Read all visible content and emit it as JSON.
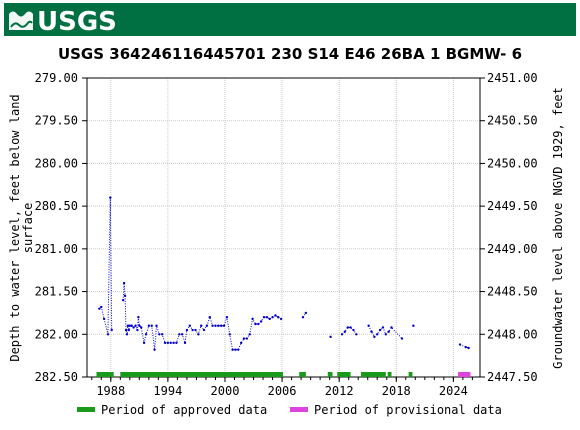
{
  "header": {
    "logo_text": "USGS",
    "background_color": "#006f41"
  },
  "chart_data": {
    "type": "scatter",
    "title": "USGS 364246116445701 230  S14 E46 26BA  1    BGMW- 6",
    "ylabel_left": "Depth to water level, feet below land surface",
    "ylabel_left_lines": [
      "Depth to water level, feet below land",
      "surface"
    ],
    "ylabel_right": "Groundwater level above NGVD 1929, feet",
    "x_axis": {
      "type": "year",
      "range": [
        1985.5,
        2026.8
      ],
      "ticks": [
        1988,
        1994,
        2000,
        2006,
        2012,
        2018,
        2024
      ],
      "tick_labels": [
        "1988",
        "1994",
        "2000",
        "2006",
        "2012",
        "2018",
        "2024"
      ]
    },
    "y_left": {
      "range": [
        279.0,
        282.5
      ],
      "inverted": true,
      "ticks": [
        279.0,
        279.5,
        280.0,
        280.5,
        281.0,
        281.5,
        282.0,
        282.5
      ],
      "tick_labels": [
        "279.00",
        "279.50",
        "280.00",
        "280.50",
        "281.00",
        "281.50",
        "282.00",
        "282.50"
      ]
    },
    "y_right": {
      "ticks": [
        2451.0,
        2450.5,
        2450.0,
        2449.5,
        2449.0,
        2448.5,
        2448.0,
        2447.5
      ],
      "tick_labels": [
        "2451.00",
        "2450.50",
        "2450.00",
        "2449.50",
        "2449.00",
        "2448.50",
        "2448.00",
        "2447.50"
      ]
    },
    "grid": true,
    "series": [
      {
        "name": "Groundwater level",
        "color": "#0000cc",
        "line_style": "dotted",
        "points": [
          [
            1986.8,
            281.7
          ],
          [
            1987.0,
            281.68
          ],
          [
            1987.3,
            281.82
          ],
          [
            1987.7,
            282.0
          ],
          [
            1987.95,
            280.4
          ],
          [
            1988.1,
            281.95
          ],
          [
            1989.3,
            281.6
          ],
          [
            1989.4,
            281.4
          ],
          [
            1989.5,
            281.55
          ],
          [
            1989.6,
            281.95
          ],
          [
            1989.7,
            282.0
          ],
          [
            1989.8,
            281.9
          ],
          [
            1989.9,
            281.95
          ],
          [
            1990.0,
            281.9
          ],
          [
            1990.2,
            281.9
          ],
          [
            1990.4,
            281.92
          ],
          [
            1990.6,
            281.9
          ],
          [
            1990.8,
            281.95
          ],
          [
            1990.9,
            281.8
          ],
          [
            1991.0,
            281.9
          ],
          [
            1991.2,
            281.92
          ],
          [
            1991.5,
            282.1
          ],
          [
            1991.7,
            282.0
          ],
          [
            1992.0,
            281.9
          ],
          [
            1992.3,
            281.9
          ],
          [
            1992.6,
            282.18
          ],
          [
            1992.8,
            281.9
          ],
          [
            1993.1,
            282.0
          ],
          [
            1993.4,
            282.0
          ],
          [
            1993.7,
            282.1
          ],
          [
            1994.0,
            282.1
          ],
          [
            1994.3,
            282.1
          ],
          [
            1994.6,
            282.1
          ],
          [
            1994.9,
            282.1
          ],
          [
            1995.2,
            282.0
          ],
          [
            1995.5,
            282.0
          ],
          [
            1995.8,
            282.1
          ],
          [
            1996.0,
            281.95
          ],
          [
            1996.3,
            281.9
          ],
          [
            1996.6,
            281.95
          ],
          [
            1996.9,
            281.95
          ],
          [
            1997.2,
            282.0
          ],
          [
            1997.5,
            281.9
          ],
          [
            1997.8,
            281.95
          ],
          [
            1998.1,
            281.9
          ],
          [
            1998.4,
            281.8
          ],
          [
            1998.7,
            281.9
          ],
          [
            1999.0,
            281.9
          ],
          [
            1999.3,
            281.9
          ],
          [
            1999.6,
            281.9
          ],
          [
            1999.9,
            281.9
          ],
          [
            2000.2,
            281.8
          ],
          [
            2000.5,
            282.0
          ],
          [
            2000.8,
            282.18
          ],
          [
            2001.1,
            282.18
          ],
          [
            2001.4,
            282.18
          ],
          [
            2001.7,
            282.1
          ],
          [
            2002.0,
            282.05
          ],
          [
            2002.3,
            282.05
          ],
          [
            2002.6,
            282.0
          ],
          [
            2002.9,
            281.82
          ],
          [
            2003.2,
            281.88
          ],
          [
            2003.5,
            281.88
          ],
          [
            2003.8,
            281.85
          ],
          [
            2004.1,
            281.8
          ],
          [
            2004.4,
            281.8
          ],
          [
            2004.7,
            281.82
          ],
          [
            2005.0,
            281.8
          ],
          [
            2005.3,
            281.78
          ],
          [
            2005.6,
            281.8
          ],
          [
            2005.9,
            281.82
          ],
          [
            2008.2,
            281.8
          ],
          [
            2008.5,
            281.75
          ],
          [
            2011.1,
            282.03
          ],
          [
            2012.3,
            282.0
          ],
          [
            2012.6,
            281.97
          ],
          [
            2012.9,
            281.92
          ],
          [
            2013.2,
            281.92
          ],
          [
            2013.5,
            281.95
          ],
          [
            2013.8,
            282.0
          ],
          [
            2015.1,
            281.9
          ],
          [
            2015.4,
            281.97
          ],
          [
            2015.7,
            282.03
          ],
          [
            2016.0,
            282.0
          ],
          [
            2016.3,
            281.95
          ],
          [
            2016.6,
            281.92
          ],
          [
            2016.9,
            282.0
          ],
          [
            2017.2,
            281.97
          ],
          [
            2017.5,
            281.92
          ],
          [
            2018.6,
            282.05
          ],
          [
            2019.8,
            281.9
          ],
          [
            2024.7,
            282.12
          ],
          [
            2025.3,
            282.15
          ],
          [
            2025.6,
            282.16
          ]
        ]
      }
    ],
    "approval_bars": {
      "approved": {
        "color": "#1a9a1a",
        "spans": [
          [
            1986.5,
            1988.3
          ],
          [
            1989.0,
            2006.1
          ],
          [
            2007.8,
            2008.5
          ],
          [
            2010.8,
            2011.3
          ],
          [
            2011.8,
            2013.2
          ],
          [
            2014.3,
            2016.9
          ],
          [
            2017.1,
            2017.5
          ],
          [
            2019.3,
            2019.7
          ]
        ]
      },
      "provisional": {
        "color": "#dd44dd",
        "spans": [
          [
            2024.5,
            2025.8
          ]
        ]
      }
    },
    "legend": {
      "placement": "bottom",
      "items": [
        {
          "label": "Period of approved data",
          "color": "#1a9a1a"
        },
        {
          "label": "Period of provisional data",
          "color": "#dd44dd"
        }
      ]
    }
  }
}
